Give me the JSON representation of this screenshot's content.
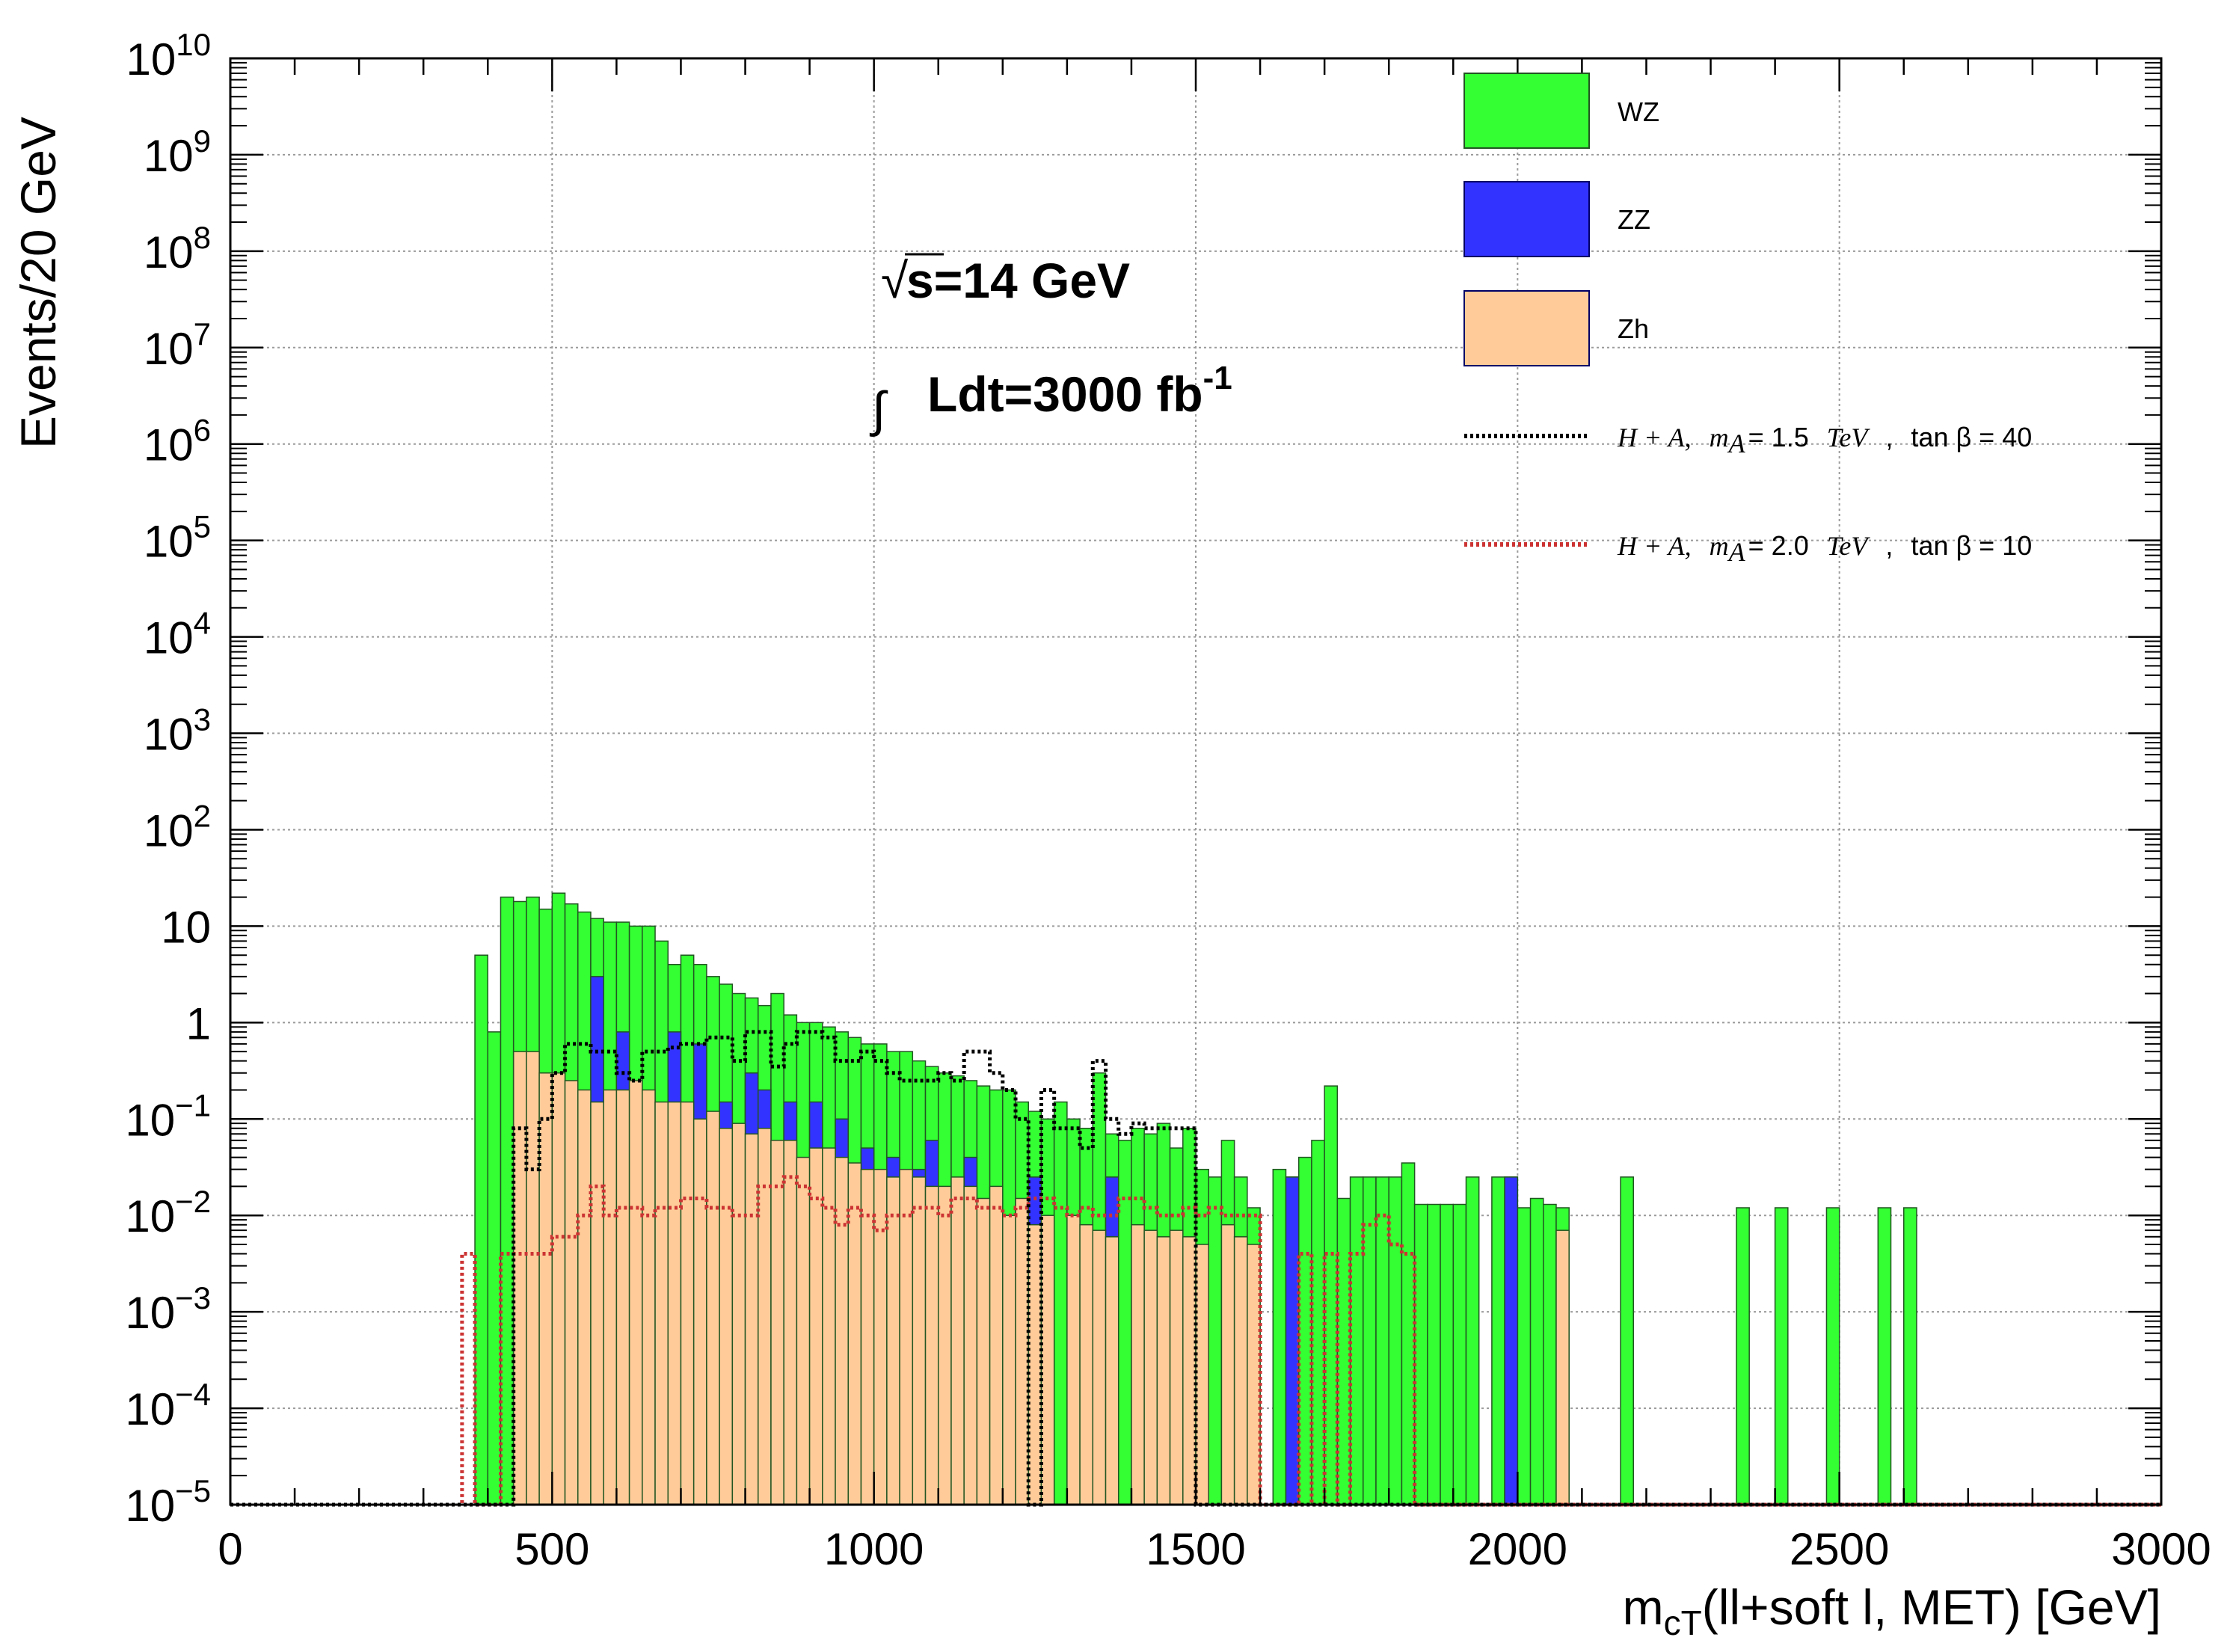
{
  "chart_data": {
    "type": "histogram",
    "y_scale": "log",
    "xlabel_main": "m",
    "xlabel_sub": "cT",
    "xlabel_rest": "(ll+soft l, MET) [GeV]",
    "ylabel": "Events/20 GeV",
    "xlim": [
      0,
      3000
    ],
    "ylim": [
      1e-05,
      10000000000.0
    ],
    "x_ticks": [
      "0",
      "500",
      "1000",
      "1500",
      "2000",
      "2500",
      "3000"
    ],
    "y_ticks": [
      {
        "base": "10",
        "exp": "10"
      },
      {
        "base": "10",
        "exp": "9"
      },
      {
        "base": "10",
        "exp": "8"
      },
      {
        "base": "10",
        "exp": "7"
      },
      {
        "base": "10",
        "exp": "6"
      },
      {
        "base": "10",
        "exp": "5"
      },
      {
        "base": "10",
        "exp": "4"
      },
      {
        "base": "10",
        "exp": "3"
      },
      {
        "base": "10",
        "exp": "2"
      },
      {
        "base": "10",
        "exp": ""
      },
      {
        "base": "1",
        "exp": ""
      },
      {
        "base": "10",
        "exp": "−1"
      },
      {
        "base": "10",
        "exp": "−2"
      },
      {
        "base": "10",
        "exp": "−3"
      },
      {
        "base": "10",
        "exp": "−4"
      },
      {
        "base": "10",
        "exp": "−5"
      }
    ],
    "grid": true,
    "legend_position": "top-right",
    "annotation": {
      "sqrt_symbol": "√",
      "energy": "s=14 GeV",
      "integral_symbol": "∫",
      "lumi": "Ldt=3000 fb",
      "lumi_exp": "-1"
    },
    "colors": {
      "WZ": "#33ff33",
      "ZZ": "#3333ff",
      "Zh": "#ffcc99",
      "outline": "#225522",
      "signal1": "#000000",
      "signal2": "#cc3333"
    },
    "bin_width": 20,
    "series": [
      {
        "name": "WZ",
        "style": "stacked-fill",
        "bins": [
          [
            380,
            5
          ],
          [
            400,
            0.8
          ],
          [
            420,
            20
          ],
          [
            440,
            18
          ],
          [
            460,
            20
          ],
          [
            480,
            15
          ],
          [
            500,
            22
          ],
          [
            520,
            17
          ],
          [
            540,
            14
          ],
          [
            560,
            12
          ],
          [
            580,
            11
          ],
          [
            600,
            11
          ],
          [
            620,
            10
          ],
          [
            640,
            10
          ],
          [
            660,
            7
          ],
          [
            680,
            4
          ],
          [
            700,
            5
          ],
          [
            720,
            4
          ],
          [
            740,
            3
          ],
          [
            760,
            2.5
          ],
          [
            780,
            2
          ],
          [
            800,
            1.8
          ],
          [
            820,
            1.5
          ],
          [
            840,
            2
          ],
          [
            860,
            1.2
          ],
          [
            880,
            1
          ],
          [
            900,
            1
          ],
          [
            920,
            0.9
          ],
          [
            940,
            0.8
          ],
          [
            960,
            0.7
          ],
          [
            980,
            0.6
          ],
          [
            1000,
            0.6
          ],
          [
            1020,
            0.5
          ],
          [
            1040,
            0.5
          ],
          [
            1060,
            0.4
          ],
          [
            1080,
            0.35
          ],
          [
            1100,
            0.3
          ],
          [
            1120,
            0.28
          ],
          [
            1140,
            0.25
          ],
          [
            1160,
            0.22
          ],
          [
            1180,
            0.2
          ],
          [
            1200,
            0.2
          ],
          [
            1220,
            0.15
          ],
          [
            1240,
            0.12
          ],
          [
            1260,
            0.1
          ],
          [
            1280,
            0.15
          ],
          [
            1300,
            0.1
          ],
          [
            1320,
            0.08
          ],
          [
            1340,
            0.3
          ],
          [
            1360,
            0.07
          ],
          [
            1380,
            0.06
          ],
          [
            1400,
            0.08
          ],
          [
            1420,
            0.07
          ],
          [
            1440,
            0.09
          ],
          [
            1460,
            0.05
          ],
          [
            1480,
            0.08
          ],
          [
            1500,
            0.03
          ],
          [
            1520,
            0.025
          ],
          [
            1540,
            0.06
          ],
          [
            1560,
            0.025
          ],
          [
            1580,
            0.012
          ],
          [
            1620,
            0.03
          ],
          [
            1640,
            0.025
          ],
          [
            1660,
            0.04
          ],
          [
            1680,
            0.06
          ],
          [
            1700,
            0.22
          ],
          [
            1720,
            0.015
          ],
          [
            1740,
            0.025
          ],
          [
            1760,
            0.025
          ],
          [
            1780,
            0.025
          ],
          [
            1800,
            0.025
          ],
          [
            1820,
            0.035
          ],
          [
            1840,
            0.013
          ],
          [
            1860,
            0.013
          ],
          [
            1880,
            0.013
          ],
          [
            1900,
            0.013
          ],
          [
            1920,
            0.025
          ],
          [
            1960,
            0.025
          ],
          [
            1980,
            0.025
          ],
          [
            2000,
            0.012
          ],
          [
            2020,
            0.015
          ],
          [
            2040,
            0.013
          ],
          [
            2060,
            0.012
          ],
          [
            2160,
            0.025
          ],
          [
            2340,
            0.012
          ],
          [
            2400,
            0.012
          ],
          [
            2480,
            0.012
          ],
          [
            2560,
            0.012
          ],
          [
            2600,
            0.012
          ]
        ]
      },
      {
        "name": "ZZ",
        "style": "stacked-fill",
        "bins": [
          [
            560,
            3
          ],
          [
            600,
            0.8
          ],
          [
            680,
            0.8
          ],
          [
            720,
            0.6
          ],
          [
            760,
            0.15
          ],
          [
            800,
            0.3
          ],
          [
            820,
            0.2
          ],
          [
            860,
            0.15
          ],
          [
            900,
            0.15
          ],
          [
            940,
            0.1
          ],
          [
            980,
            0.05
          ],
          [
            1020,
            0.04
          ],
          [
            1060,
            0.03
          ],
          [
            1080,
            0.06
          ],
          [
            1140,
            0.04
          ],
          [
            1240,
            0.025
          ],
          [
            1360,
            0.025
          ],
          [
            1640,
            0.025
          ],
          [
            1980,
            0.025
          ]
        ]
      },
      {
        "name": "Zh",
        "style": "stacked-fill",
        "bins": [
          [
            440,
            0.5
          ],
          [
            460,
            0.5
          ],
          [
            480,
            0.3
          ],
          [
            500,
            0.3
          ],
          [
            520,
            0.25
          ],
          [
            540,
            0.2
          ],
          [
            560,
            0.15
          ],
          [
            580,
            0.2
          ],
          [
            600,
            0.2
          ],
          [
            620,
            0.25
          ],
          [
            640,
            0.2
          ],
          [
            660,
            0.15
          ],
          [
            680,
            0.15
          ],
          [
            700,
            0.15
          ],
          [
            720,
            0.1
          ],
          [
            740,
            0.12
          ],
          [
            760,
            0.08
          ],
          [
            780,
            0.09
          ],
          [
            800,
            0.07
          ],
          [
            820,
            0.08
          ],
          [
            840,
            0.06
          ],
          [
            860,
            0.06
          ],
          [
            880,
            0.04
          ],
          [
            900,
            0.05
          ],
          [
            920,
            0.05
          ],
          [
            940,
            0.04
          ],
          [
            960,
            0.035
          ],
          [
            980,
            0.03
          ],
          [
            1000,
            0.03
          ],
          [
            1020,
            0.025
          ],
          [
            1040,
            0.03
          ],
          [
            1060,
            0.025
          ],
          [
            1080,
            0.02
          ],
          [
            1100,
            0.02
          ],
          [
            1120,
            0.025
          ],
          [
            1140,
            0.02
          ],
          [
            1160,
            0.015
          ],
          [
            1180,
            0.02
          ],
          [
            1200,
            0.01
          ],
          [
            1220,
            0.015
          ],
          [
            1240,
            0.008
          ],
          [
            1260,
            0.01
          ],
          [
            1300,
            0.01
          ],
          [
            1320,
            0.008
          ],
          [
            1340,
            0.007
          ],
          [
            1360,
            0.006
          ],
          [
            1400,
            0.008
          ],
          [
            1420,
            0.007
          ],
          [
            1440,
            0.006
          ],
          [
            1460,
            0.007
          ],
          [
            1480,
            0.006
          ],
          [
            1500,
            0.005
          ],
          [
            1540,
            0.008
          ],
          [
            1560,
            0.006
          ],
          [
            1580,
            0.005
          ],
          [
            2060,
            0.007
          ]
        ]
      },
      {
        "name": "H + A,   m_A = 1.5   TeV   ,   tan β = 40",
        "legend_parts": {
          "proc": "H + A,",
          "m": "m",
          "msub": "A",
          "mval": "= 1.5",
          "unit": "TeV",
          "sep": ",",
          "tan": "tan β = 40"
        },
        "style": "dashed-line",
        "bins": [
          [
            440,
            0.08
          ],
          [
            460,
            0.03
          ],
          [
            480,
            0.1
          ],
          [
            500,
            0.3
          ],
          [
            520,
            0.6
          ],
          [
            540,
            0.6
          ],
          [
            560,
            0.5
          ],
          [
            580,
            0.5
          ],
          [
            600,
            0.3
          ],
          [
            620,
            0.25
          ],
          [
            640,
            0.5
          ],
          [
            660,
            0.5
          ],
          [
            680,
            0.55
          ],
          [
            700,
            0.6
          ],
          [
            720,
            0.6
          ],
          [
            740,
            0.7
          ],
          [
            760,
            0.7
          ],
          [
            780,
            0.4
          ],
          [
            800,
            0.8
          ],
          [
            820,
            0.8
          ],
          [
            840,
            0.35
          ],
          [
            860,
            0.6
          ],
          [
            880,
            0.8
          ],
          [
            900,
            0.8
          ],
          [
            920,
            0.7
          ],
          [
            940,
            0.4
          ],
          [
            960,
            0.4
          ],
          [
            980,
            0.5
          ],
          [
            1000,
            0.4
          ],
          [
            1020,
            0.3
          ],
          [
            1040,
            0.25
          ],
          [
            1060,
            0.25
          ],
          [
            1080,
            0.25
          ],
          [
            1100,
            0.3
          ],
          [
            1120,
            0.25
          ],
          [
            1140,
            0.5
          ],
          [
            1160,
            0.5
          ],
          [
            1180,
            0.3
          ],
          [
            1200,
            0.2
          ],
          [
            1220,
            0.1
          ],
          [
            1260,
            0.2
          ],
          [
            1280,
            0.08
          ],
          [
            1300,
            0.08
          ],
          [
            1320,
            0.05
          ],
          [
            1340,
            0.4
          ],
          [
            1360,
            0.1
          ],
          [
            1380,
            0.07
          ],
          [
            1400,
            0.09
          ],
          [
            1420,
            0.08
          ],
          [
            1440,
            0.08
          ],
          [
            1460,
            0.08
          ],
          [
            1480,
            0.08
          ]
        ]
      },
      {
        "name": "H + A,   m_A = 2.0   TeV   ,   tan β = 10",
        "legend_parts": {
          "proc": "H + A,",
          "m": "m",
          "msub": "A",
          "mval": "= 2.0",
          "unit": "TeV",
          "sep": ",",
          "tan": "tan β = 10"
        },
        "style": "dashed-line",
        "bins": [
          [
            360,
            0.004
          ],
          [
            420,
            0.004
          ],
          [
            440,
            0.004
          ],
          [
            460,
            0.004
          ],
          [
            480,
            0.004
          ],
          [
            500,
            0.006
          ],
          [
            520,
            0.006
          ],
          [
            540,
            0.01
          ],
          [
            560,
            0.02
          ],
          [
            580,
            0.01
          ],
          [
            600,
            0.012
          ],
          [
            620,
            0.012
          ],
          [
            640,
            0.01
          ],
          [
            660,
            0.012
          ],
          [
            680,
            0.012
          ],
          [
            700,
            0.015
          ],
          [
            720,
            0.015
          ],
          [
            740,
            0.012
          ],
          [
            760,
            0.012
          ],
          [
            780,
            0.01
          ],
          [
            800,
            0.01
          ],
          [
            820,
            0.02
          ],
          [
            840,
            0.02
          ],
          [
            860,
            0.025
          ],
          [
            880,
            0.02
          ],
          [
            900,
            0.015
          ],
          [
            920,
            0.012
          ],
          [
            940,
            0.008
          ],
          [
            960,
            0.012
          ],
          [
            980,
            0.01
          ],
          [
            1000,
            0.007
          ],
          [
            1020,
            0.01
          ],
          [
            1040,
            0.01
          ],
          [
            1060,
            0.012
          ],
          [
            1080,
            0.012
          ],
          [
            1100,
            0.01
          ],
          [
            1120,
            0.015
          ],
          [
            1140,
            0.015
          ],
          [
            1160,
            0.012
          ],
          [
            1180,
            0.012
          ],
          [
            1200,
            0.01
          ],
          [
            1220,
            0.012
          ],
          [
            1240,
            0.015
          ],
          [
            1260,
            0.015
          ],
          [
            1280,
            0.012
          ],
          [
            1300,
            0.01
          ],
          [
            1320,
            0.012
          ],
          [
            1340,
            0.01
          ],
          [
            1360,
            0.01
          ],
          [
            1380,
            0.015
          ],
          [
            1400,
            0.015
          ],
          [
            1420,
            0.012
          ],
          [
            1440,
            0.01
          ],
          [
            1460,
            0.01
          ],
          [
            1480,
            0.012
          ],
          [
            1500,
            0.01
          ],
          [
            1520,
            0.012
          ],
          [
            1540,
            0.01
          ],
          [
            1560,
            0.01
          ],
          [
            1580,
            0.01
          ],
          [
            1660,
            0.004
          ],
          [
            1700,
            0.004
          ],
          [
            1740,
            0.004
          ],
          [
            1760,
            0.008
          ],
          [
            1780,
            0.01
          ],
          [
            1800,
            0.005
          ],
          [
            1820,
            0.004
          ]
        ]
      }
    ]
  }
}
